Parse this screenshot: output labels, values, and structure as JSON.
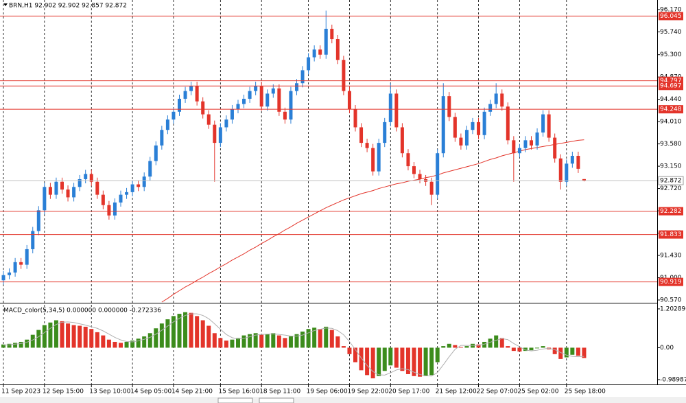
{
  "chart_data": [
    {
      "type": "candlestick",
      "title": "BRN,H1 92.902 92.902 92.857 92.872",
      "categories": [
        "11 Sep 2023",
        null,
        null,
        null,
        null,
        null,
        null,
        "12 Sep 15:00",
        null,
        null,
        null,
        null,
        null,
        null,
        null,
        "13 Sep 10:00",
        null,
        null,
        null,
        null,
        null,
        null,
        "14 Sep 05:00",
        null,
        null,
        null,
        null,
        null,
        null,
        "14 Sep 21:00",
        null,
        null,
        null,
        null,
        null,
        null,
        null,
        "15 Sep 16:00",
        null,
        null,
        null,
        null,
        null,
        null,
        "18 Sep 11:00",
        null,
        null,
        null,
        null,
        null,
        null,
        null,
        "19 Sep 06:00",
        null,
        null,
        null,
        null,
        null,
        null,
        "19 Sep 22:00",
        null,
        null,
        null,
        null,
        null,
        null,
        "20 Sep 17:00",
        null,
        null,
        null,
        null,
        null,
        null,
        null,
        "21 Sep 12:00",
        null,
        null,
        null,
        null,
        null,
        null,
        "22 Sep 07:00",
        null,
        null,
        null,
        null,
        null,
        null,
        "25 Sep 02:00",
        null,
        null,
        null,
        null,
        null,
        null,
        null,
        "25 Sep 18:00",
        null,
        null,
        null
      ],
      "open": [
        90.95,
        91.05,
        91.1,
        91.3,
        91.25,
        91.55,
        91.9,
        92.3,
        92.75,
        92.6,
        92.85,
        92.7,
        92.55,
        92.75,
        92.9,
        93.0,
        92.85,
        92.6,
        92.4,
        92.2,
        92.45,
        92.6,
        92.65,
        92.8,
        92.75,
        92.95,
        93.25,
        93.55,
        93.85,
        94.05,
        94.2,
        94.45,
        94.6,
        94.7,
        94.4,
        94.15,
        93.95,
        93.6,
        93.9,
        94.05,
        94.25,
        94.35,
        94.45,
        94.6,
        94.7,
        94.3,
        94.55,
        94.65,
        94.2,
        94.05,
        94.6,
        94.75,
        95.0,
        95.25,
        95.4,
        95.3,
        95.8,
        95.6,
        95.2,
        94.6,
        94.25,
        93.9,
        93.6,
        93.5,
        93.05,
        93.6,
        94.0,
        94.55,
        93.9,
        93.4,
        93.15,
        93.0,
        92.9,
        92.85,
        92.6,
        93.4,
        94.5,
        94.1,
        93.7,
        93.55,
        93.85,
        94.0,
        93.75,
        94.2,
        94.35,
        94.55,
        94.3,
        93.65,
        93.4,
        93.5,
        93.65,
        93.55,
        93.8,
        94.15,
        93.7,
        93.3,
        92.85,
        93.2,
        93.35,
        92.902
      ],
      "high": [
        91.13,
        91.18,
        91.38,
        91.38,
        91.63,
        91.98,
        92.38,
        92.83,
        92.83,
        92.93,
        92.93,
        92.78,
        92.83,
        92.98,
        93.08,
        93.08,
        92.93,
        92.68,
        92.48,
        92.53,
        92.68,
        92.73,
        92.88,
        92.88,
        93.03,
        93.33,
        93.63,
        93.93,
        94.13,
        94.28,
        94.53,
        94.68,
        94.78,
        94.78,
        94.48,
        94.23,
        94.03,
        93.98,
        94.13,
        94.33,
        94.43,
        94.53,
        94.68,
        94.78,
        94.78,
        94.63,
        94.73,
        94.73,
        94.28,
        94.68,
        94.83,
        95.08,
        95.33,
        95.48,
        95.48,
        96.15,
        95.88,
        95.68,
        95.28,
        94.68,
        94.33,
        93.98,
        93.68,
        93.58,
        93.68,
        94.08,
        94.75,
        94.63,
        93.98,
        93.48,
        93.23,
        93.08,
        92.98,
        92.93,
        93.48,
        94.75,
        94.58,
        94.18,
        93.78,
        93.93,
        94.08,
        94.08,
        94.28,
        94.43,
        94.75,
        94.63,
        94.38,
        93.73,
        93.58,
        93.73,
        93.73,
        93.88,
        94.23,
        94.23,
        93.78,
        93.38,
        93.28,
        93.43,
        93.43,
        92.902
      ],
      "low": [
        90.87,
        90.97,
        91.02,
        91.17,
        91.17,
        91.47,
        91.82,
        92.22,
        92.52,
        92.52,
        92.62,
        92.47,
        92.47,
        92.67,
        92.82,
        92.77,
        92.52,
        92.32,
        92.12,
        92.12,
        92.37,
        92.52,
        92.57,
        92.67,
        92.67,
        92.87,
        93.17,
        93.47,
        93.77,
        93.97,
        94.12,
        94.37,
        94.52,
        94.32,
        94.07,
        93.87,
        92.85,
        93.52,
        93.82,
        93.97,
        94.17,
        94.27,
        94.37,
        94.52,
        94.22,
        94.22,
        94.47,
        94.12,
        93.97,
        93.97,
        94.52,
        94.67,
        94.92,
        95.17,
        95.22,
        95.22,
        95.52,
        95.12,
        94.52,
        94.17,
        93.82,
        93.52,
        93.42,
        92.97,
        92.97,
        93.52,
        93.92,
        93.82,
        93.32,
        93.07,
        92.92,
        92.82,
        92.77,
        92.4,
        92.52,
        93.32,
        94.02,
        93.62,
        93.47,
        93.47,
        93.77,
        93.67,
        93.67,
        94.12,
        94.27,
        94.22,
        93.57,
        92.85,
        93.32,
        93.42,
        93.47,
        93.47,
        93.72,
        93.62,
        93.22,
        92.7,
        92.77,
        93.12,
        93.02,
        92.857
      ],
      "close": [
        91.05,
        91.1,
        91.3,
        91.25,
        91.55,
        91.9,
        92.3,
        92.75,
        92.6,
        92.85,
        92.7,
        92.55,
        92.75,
        92.9,
        93.0,
        92.85,
        92.6,
        92.4,
        92.2,
        92.45,
        92.6,
        92.65,
        92.8,
        92.75,
        92.95,
        93.25,
        93.55,
        93.85,
        94.05,
        94.2,
        94.45,
        94.6,
        94.7,
        94.4,
        94.15,
        93.95,
        93.6,
        93.9,
        94.05,
        94.25,
        94.35,
        94.45,
        94.6,
        94.7,
        94.3,
        94.55,
        94.65,
        94.2,
        94.05,
        94.6,
        94.75,
        95.0,
        95.25,
        95.4,
        95.3,
        95.8,
        95.6,
        95.2,
        94.6,
        94.25,
        93.9,
        93.6,
        93.5,
        93.05,
        93.6,
        94.0,
        94.55,
        93.9,
        93.4,
        93.15,
        93.0,
        92.9,
        92.85,
        92.6,
        93.4,
        94.5,
        94.1,
        93.7,
        93.55,
        93.85,
        94.0,
        93.75,
        94.2,
        94.35,
        94.55,
        94.3,
        93.65,
        93.4,
        93.5,
        93.65,
        93.55,
        93.8,
        94.15,
        93.7,
        93.3,
        92.85,
        93.2,
        93.35,
        93.1,
        92.872
      ],
      "up_color": "#2a7fd6",
      "down_color": "#e3342a",
      "ma": {
        "color": "#e3342a",
        "values": [
          null,
          null,
          null,
          null,
          null,
          null,
          null,
          null,
          null,
          null,
          null,
          null,
          null,
          null,
          null,
          null,
          null,
          null,
          null,
          null,
          null,
          null,
          null,
          null,
          null,
          null,
          null,
          90.53,
          90.6,
          90.68,
          90.75,
          90.82,
          90.88,
          90.95,
          91.01,
          91.08,
          91.14,
          91.21,
          91.27,
          91.34,
          91.4,
          91.46,
          91.53,
          91.59,
          91.66,
          91.72,
          91.79,
          91.85,
          91.92,
          91.98,
          92.05,
          92.11,
          92.17,
          92.23,
          92.29,
          92.35,
          92.4,
          92.45,
          92.5,
          92.54,
          92.58,
          92.62,
          92.65,
          92.68,
          92.72,
          92.75,
          92.78,
          92.81,
          92.83,
          92.86,
          92.88,
          92.9,
          92.93,
          92.95,
          92.98,
          93.02,
          93.05,
          93.08,
          93.11,
          93.14,
          93.17,
          93.2,
          93.24,
          93.28,
          93.31,
          93.35,
          93.38,
          93.41,
          93.44,
          93.47,
          93.49,
          93.51,
          93.53,
          93.55,
          93.57,
          93.59,
          93.61,
          93.63,
          93.65,
          93.66
        ]
      },
      "levels": [
        96.045,
        94.797,
        94.697,
        94.248,
        92.282,
        91.833,
        90.919
      ],
      "level_color": "#e3342a",
      "current_price": 92.872,
      "ylim": [
        90.53,
        96.355
      ],
      "yticks": [
        {
          "value": 96.17,
          "label": "96.170"
        },
        {
          "value": 95.74,
          "label": "95.740"
        },
        {
          "value": 95.3,
          "label": "95.300"
        },
        {
          "value": 94.87,
          "label": "94.870"
        },
        {
          "value": 94.44,
          "label": "94.440"
        },
        {
          "value": 94.01,
          "label": "94.010"
        },
        {
          "value": 93.58,
          "label": "93.580"
        },
        {
          "value": 93.15,
          "label": "93.150"
        },
        {
          "value": 92.72,
          "label": "92.720"
        },
        {
          "value": 92.29,
          "label": "92.290"
        },
        {
          "value": 91.86,
          "label": "91.860"
        },
        {
          "value": 91.43,
          "label": "91.430"
        },
        {
          "value": 91.0,
          "label": "91.000"
        },
        {
          "value": 90.57,
          "label": "90.570"
        }
      ]
    },
    {
      "type": "bar",
      "title": "MACD_color(5,34,5) 0.000000 0.000000 -0.272336",
      "values": [
        0.1,
        0.12,
        0.15,
        0.18,
        0.25,
        0.4,
        0.55,
        0.7,
        0.78,
        0.85,
        0.82,
        0.75,
        0.7,
        0.68,
        0.65,
        0.58,
        0.48,
        0.38,
        0.25,
        0.18,
        0.15,
        0.18,
        0.22,
        0.28,
        0.35,
        0.45,
        0.6,
        0.75,
        0.88,
        0.98,
        1.05,
        1.1,
        1.08,
        0.98,
        0.85,
        0.68,
        0.45,
        0.3,
        0.22,
        0.25,
        0.3,
        0.38,
        0.42,
        0.45,
        0.4,
        0.42,
        0.45,
        0.38,
        0.3,
        0.35,
        0.42,
        0.5,
        0.58,
        0.62,
        0.58,
        0.65,
        0.55,
        0.35,
        0.05,
        -0.2,
        -0.45,
        -0.7,
        -0.85,
        -0.95,
        -0.88,
        -0.72,
        -0.55,
        -0.62,
        -0.72,
        -0.82,
        -0.88,
        -0.9,
        -0.88,
        -0.85,
        -0.45,
        0.05,
        0.12,
        0.08,
        0.02,
        0.05,
        0.12,
        0.1,
        0.18,
        0.28,
        0.38,
        0.3,
        0.05,
        -0.1,
        -0.12,
        -0.1,
        -0.08,
        -0.02,
        0.05,
        -0.05,
        -0.2,
        -0.35,
        -0.3,
        -0.22,
        -0.25,
        -0.32
      ],
      "up_color": "#3c8c1c",
      "down_color": "#e3342a",
      "signal": {
        "color": "#b0b0b0",
        "values": [
          0.08,
          0.09,
          0.11,
          0.13,
          0.17,
          0.24,
          0.34,
          0.47,
          0.6,
          0.72,
          0.79,
          0.8,
          0.78,
          0.74,
          0.7,
          0.65,
          0.6,
          0.52,
          0.42,
          0.32,
          0.24,
          0.19,
          0.18,
          0.21,
          0.26,
          0.32,
          0.42,
          0.54,
          0.67,
          0.8,
          0.91,
          1.0,
          1.05,
          1.05,
          1.0,
          0.9,
          0.74,
          0.57,
          0.41,
          0.31,
          0.27,
          0.29,
          0.34,
          0.39,
          0.41,
          0.42,
          0.43,
          0.41,
          0.39,
          0.36,
          0.36,
          0.39,
          0.46,
          0.53,
          0.57,
          0.61,
          0.6,
          0.53,
          0.4,
          0.19,
          -0.06,
          -0.32,
          -0.55,
          -0.74,
          -0.84,
          -0.85,
          -0.78,
          -0.69,
          -0.65,
          -0.68,
          -0.76,
          -0.83,
          -0.87,
          -0.88,
          -0.77,
          -0.53,
          -0.28,
          -0.05,
          0.07,
          0.07,
          0.07,
          0.07,
          0.11,
          0.17,
          0.23,
          0.28,
          0.25,
          0.13,
          0.03,
          -0.07,
          -0.1,
          -0.08,
          -0.04,
          -0.02,
          -0.06,
          -0.15,
          -0.23,
          -0.27,
          -0.28,
          -0.27
        ]
      },
      "ylim": [
        -1.14,
        1.35
      ],
      "yticks": [
        1.202896,
        {
          "value": 0,
          "label": "0.00"
        },
        -0.98987
      ]
    }
  ]
}
